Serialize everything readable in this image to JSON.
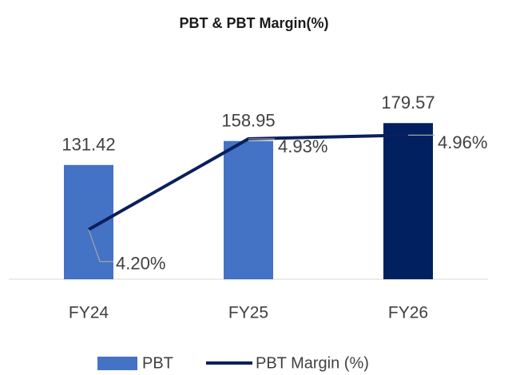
{
  "chart_data": {
    "type": "combo",
    "title": "PBT & PBT Margin(%)",
    "categories": [
      "FY24",
      "FY25",
      "FY26"
    ],
    "series": [
      {
        "name": "PBT",
        "type": "bar",
        "color": "#4472c4",
        "colors": [
          "#4472c4",
          "#4472c4",
          "#002060"
        ],
        "values": [
          131.42,
          158.95,
          179.57
        ],
        "axis": "y"
      },
      {
        "name": "PBT Margin (%)",
        "type": "line",
        "color": "#0a1f5c",
        "values": [
          4.2,
          4.93,
          4.96
        ],
        "value_labels": [
          "4.20%",
          "4.93%",
          "4.96%"
        ],
        "axis": "y2"
      }
    ],
    "ylim": [
      0,
      200
    ],
    "y2lim": [
      3.8,
      5.2
    ]
  }
}
